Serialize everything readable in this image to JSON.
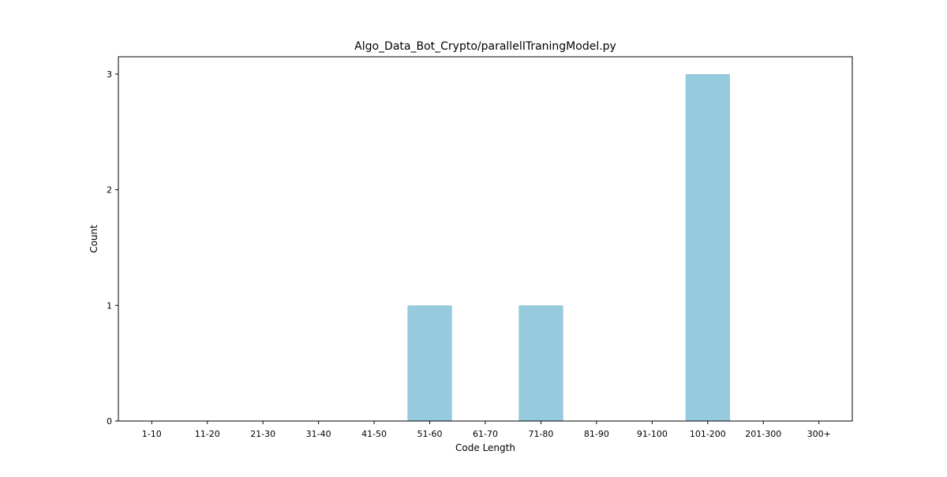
{
  "chart_data": {
    "type": "bar",
    "title": "Algo_Data_Bot_Crypto/parallelITraningModel.py",
    "xlabel": "Code Length",
    "ylabel": "Count",
    "categories": [
      "1-10",
      "11-20",
      "21-30",
      "31-40",
      "41-50",
      "51-60",
      "61-70",
      "71-80",
      "81-90",
      "91-100",
      "101-200",
      "201-300",
      "300+"
    ],
    "values": [
      0,
      0,
      0,
      0,
      0,
      1,
      0,
      1,
      0,
      0,
      3,
      0,
      0
    ],
    "ylim": [
      0,
      3.15
    ],
    "yticks": [
      0,
      1,
      2,
      3
    ],
    "grid": false,
    "bar_color": "#96cadd"
  }
}
